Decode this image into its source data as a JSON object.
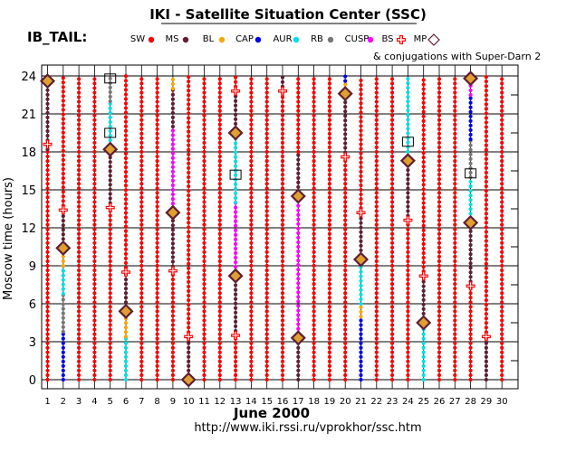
{
  "chart_data": {
    "type": "scatter",
    "title": "IKI - Satellite Situation Center (SSC)",
    "mission": "IB_TAIL:",
    "xlabel": "June   2000",
    "ylabel": "Moscow time (hours)",
    "url": "http://www.iki.rssi.ru/vprokhor/ssc.htm",
    "conjugation_note": "& conjugations with Super-Darn 2",
    "xlim": [
      1,
      30
    ],
    "ylim": [
      0,
      24
    ],
    "x_ticks": [
      1,
      2,
      3,
      4,
      5,
      6,
      7,
      8,
      9,
      10,
      11,
      12,
      13,
      14,
      15,
      16,
      17,
      18,
      19,
      20,
      21,
      22,
      23,
      24,
      25,
      26,
      27,
      28,
      29,
      30
    ],
    "y_ticks": [
      0,
      3,
      6,
      9,
      12,
      15,
      18,
      21,
      24
    ],
    "grid": true,
    "legend_position": "top",
    "legend": [
      {
        "key": "SW",
        "label": "SW",
        "color": "#ff0000",
        "marker": "dot"
      },
      {
        "key": "MS",
        "label": "MS",
        "color": "#5e1f33",
        "marker": "dot"
      },
      {
        "key": "BL",
        "label": "BL",
        "color": "#ffa500",
        "marker": "dot"
      },
      {
        "key": "CAP",
        "label": "CAP",
        "color": "#0000ee",
        "marker": "dot"
      },
      {
        "key": "AUR",
        "label": "AUR",
        "color": "#00e0e0",
        "marker": "dot"
      },
      {
        "key": "RB",
        "label": "RB",
        "color": "#777777",
        "marker": "dot"
      },
      {
        "key": "CUSP",
        "label": "CUSP",
        "color": "#ff00ff",
        "marker": "dot"
      },
      {
        "key": "BS",
        "label": "BS",
        "color": "#ff0000",
        "marker": "cross"
      },
      {
        "key": "MP",
        "label": "MP",
        "color": "#5e1f33",
        "marker": "diamond"
      }
    ],
    "series": [
      {
        "day": 1,
        "segments": [
          [
            0,
            18.2,
            "SW"
          ],
          [
            18.2,
            23.6,
            "MS"
          ],
          [
            23.6,
            24,
            "CAP"
          ]
        ],
        "mp": [
          23.6
        ],
        "bs": [
          18.6
        ],
        "sd": []
      },
      {
        "day": 2,
        "segments": [
          [
            0,
            3.8,
            "CAP"
          ],
          [
            3.8,
            6.8,
            "RB"
          ],
          [
            6.8,
            9,
            "AUR"
          ],
          [
            9,
            10.4,
            "BL"
          ],
          [
            10.4,
            13.4,
            "MS"
          ],
          [
            13.4,
            24,
            "SW"
          ]
        ],
        "mp": [
          10.4
        ],
        "bs": [
          13.4
        ],
        "sd": []
      },
      {
        "day": 3,
        "segments": [
          [
            0,
            24,
            "SW"
          ]
        ],
        "mp": [],
        "bs": [],
        "sd": []
      },
      {
        "day": 4,
        "segments": [
          [
            0,
            24,
            "SW"
          ]
        ],
        "mp": [],
        "bs": [],
        "sd": []
      },
      {
        "day": 5,
        "segments": [
          [
            0,
            13.6,
            "SW"
          ],
          [
            13.6,
            18.2,
            "MS"
          ],
          [
            18.2,
            22,
            "AUR"
          ],
          [
            22,
            24,
            "RB"
          ]
        ],
        "mp": [
          18.2
        ],
        "bs": [
          13.6
        ],
        "sd": [
          19.5,
          23.8
        ]
      },
      {
        "day": 6,
        "segments": [
          [
            0,
            3.4,
            "AUR"
          ],
          [
            3.4,
            5.4,
            "BL"
          ],
          [
            5.4,
            8.5,
            "MS"
          ],
          [
            8.5,
            24,
            "SW"
          ]
        ],
        "mp": [
          5.4
        ],
        "bs": [
          8.5
        ],
        "sd": []
      },
      {
        "day": 7,
        "segments": [
          [
            0,
            24,
            "SW"
          ]
        ],
        "mp": [],
        "bs": [],
        "sd": []
      },
      {
        "day": 8,
        "segments": [
          [
            0,
            24,
            "SW"
          ]
        ],
        "mp": [],
        "bs": [],
        "sd": []
      },
      {
        "day": 9,
        "segments": [
          [
            0,
            8.6,
            "SW"
          ],
          [
            8.6,
            13.2,
            "MS"
          ],
          [
            13.2,
            20,
            "CUSP"
          ],
          [
            20,
            23,
            "MS"
          ],
          [
            23,
            24,
            "BL"
          ]
        ],
        "mp": [
          13.2
        ],
        "bs": [
          8.6
        ],
        "sd": []
      },
      {
        "day": 10,
        "segments": [
          [
            0,
            3.4,
            "MS"
          ],
          [
            3.4,
            24,
            "SW"
          ]
        ],
        "mp": [
          0
        ],
        "bs": [
          3.4
        ],
        "sd": []
      },
      {
        "day": 11,
        "segments": [
          [
            0,
            24,
            "SW"
          ]
        ],
        "mp": [],
        "bs": [],
        "sd": []
      },
      {
        "day": 12,
        "segments": [
          [
            0,
            24,
            "SW"
          ]
        ],
        "mp": [],
        "bs": [],
        "sd": []
      },
      {
        "day": 13,
        "segments": [
          [
            0,
            3.5,
            "SW"
          ],
          [
            3.5,
            8.2,
            "MS"
          ],
          [
            8.2,
            14,
            "CUSP"
          ],
          [
            14,
            19.5,
            "AUR"
          ],
          [
            19.5,
            22.8,
            "MS"
          ],
          [
            22.8,
            24,
            "SW"
          ]
        ],
        "mp": [
          8.2,
          19.5
        ],
        "bs": [
          3.5,
          22.8
        ],
        "sd": [
          16.2
        ]
      },
      {
        "day": 14,
        "segments": [
          [
            0,
            24,
            "SW"
          ]
        ],
        "mp": [],
        "bs": [],
        "sd": []
      },
      {
        "day": 15,
        "segments": [
          [
            0,
            24,
            "SW"
          ]
        ],
        "mp": [],
        "bs": [],
        "sd": []
      },
      {
        "day": 16,
        "segments": [
          [
            0,
            22.8,
            "SW"
          ],
          [
            22.8,
            24,
            "MS"
          ]
        ],
        "mp": [],
        "bs": [
          22.8
        ],
        "sd": []
      },
      {
        "day": 17,
        "segments": [
          [
            0,
            3.3,
            "MS"
          ],
          [
            3.3,
            14.5,
            "CUSP"
          ],
          [
            14.5,
            18,
            "MS"
          ],
          [
            18,
            24,
            "SW"
          ]
        ],
        "mp": [
          3.3,
          14.5
        ],
        "bs": [],
        "sd": []
      },
      {
        "day": 18,
        "segments": [
          [
            0,
            24,
            "SW"
          ]
        ],
        "mp": [],
        "bs": [],
        "sd": []
      },
      {
        "day": 19,
        "segments": [
          [
            0,
            24,
            "SW"
          ]
        ],
        "mp": [],
        "bs": [],
        "sd": []
      },
      {
        "day": 20,
        "segments": [
          [
            0,
            17.6,
            "SW"
          ],
          [
            17.6,
            22.6,
            "MS"
          ],
          [
            22.6,
            23.6,
            "BL"
          ],
          [
            23.6,
            24,
            "CAP"
          ]
        ],
        "mp": [
          22.6
        ],
        "bs": [
          17.6
        ],
        "sd": []
      },
      {
        "day": 21,
        "segments": [
          [
            0,
            5,
            "CAP"
          ],
          [
            5,
            6,
            "BL"
          ],
          [
            6,
            9.5,
            "AUR"
          ],
          [
            9.5,
            13.2,
            "MS"
          ],
          [
            13.2,
            24,
            "SW"
          ]
        ],
        "mp": [
          9.5
        ],
        "bs": [
          13.2
        ],
        "sd": []
      },
      {
        "day": 22,
        "segments": [
          [
            0,
            24,
            "SW"
          ]
        ],
        "mp": [],
        "bs": [],
        "sd": []
      },
      {
        "day": 23,
        "segments": [
          [
            0,
            24,
            "SW"
          ]
        ],
        "mp": [],
        "bs": [],
        "sd": []
      },
      {
        "day": 24,
        "segments": [
          [
            0,
            12.6,
            "SW"
          ],
          [
            12.6,
            17.3,
            "MS"
          ],
          [
            17.3,
            24,
            "AUR"
          ]
        ],
        "mp": [
          17.3
        ],
        "bs": [
          12.6
        ],
        "sd": [
          18.8
        ]
      },
      {
        "day": 25,
        "segments": [
          [
            0,
            4.5,
            "AUR"
          ],
          [
            4.5,
            8.2,
            "MS"
          ],
          [
            8.2,
            24,
            "SW"
          ]
        ],
        "mp": [
          4.5
        ],
        "bs": [
          8.2
        ],
        "sd": []
      },
      {
        "day": 26,
        "segments": [
          [
            0,
            24,
            "SW"
          ]
        ],
        "mp": [],
        "bs": [],
        "sd": []
      },
      {
        "day": 27,
        "segments": [
          [
            0,
            24,
            "SW"
          ]
        ],
        "mp": [],
        "bs": [],
        "sd": []
      },
      {
        "day": 28,
        "segments": [
          [
            0,
            7.4,
            "SW"
          ],
          [
            7.4,
            12.4,
            "MS"
          ],
          [
            12.4,
            16,
            "AUR"
          ],
          [
            16,
            19,
            "RB"
          ],
          [
            19,
            22.5,
            "CAP"
          ],
          [
            22.5,
            23.8,
            "CUSP"
          ],
          [
            23.8,
            24,
            "MS"
          ]
        ],
        "mp": [
          12.4,
          23.8
        ],
        "bs": [
          7.4
        ],
        "sd": [
          16.3
        ]
      },
      {
        "day": 29,
        "segments": [
          [
            0,
            3.4,
            "MS"
          ],
          [
            3.4,
            24,
            "SW"
          ]
        ],
        "mp": [],
        "bs": [
          3.4
        ],
        "sd": []
      },
      {
        "day": 30,
        "segments": [
          [
            0,
            24,
            "SW"
          ]
        ],
        "mp": [],
        "bs": [],
        "sd": []
      }
    ]
  }
}
